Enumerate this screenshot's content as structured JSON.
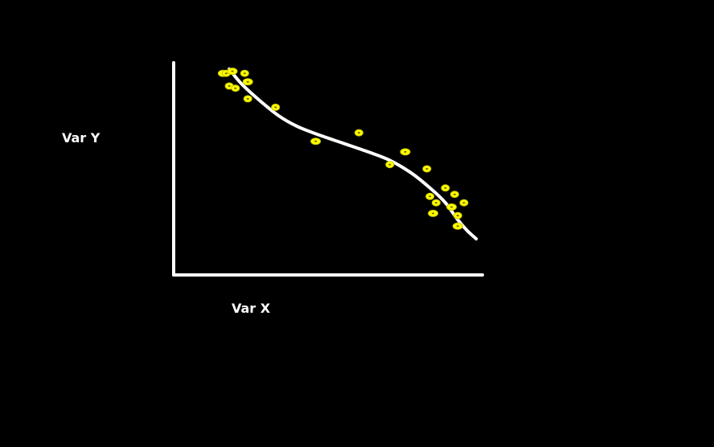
{
  "chart_data": {
    "type": "scatter",
    "title": "",
    "xlabel": "Var X",
    "ylabel": "Var Y",
    "xlim": [
      0,
      100
    ],
    "ylim": [
      0,
      100
    ],
    "grid": false,
    "legend": "none",
    "ticks": false,
    "points": [
      {
        "x": 16,
        "y": 95
      },
      {
        "x": 17,
        "y": 95
      },
      {
        "x": 18,
        "y": 89
      },
      {
        "x": 19,
        "y": 96
      },
      {
        "x": 20,
        "y": 88
      },
      {
        "x": 23,
        "y": 95
      },
      {
        "x": 24,
        "y": 91
      },
      {
        "x": 24,
        "y": 83
      },
      {
        "x": 33,
        "y": 79
      },
      {
        "x": 46,
        "y": 63
      },
      {
        "x": 60,
        "y": 67
      },
      {
        "x": 70,
        "y": 52
      },
      {
        "x": 75,
        "y": 58
      },
      {
        "x": 82,
        "y": 50
      },
      {
        "x": 83,
        "y": 37
      },
      {
        "x": 84,
        "y": 29
      },
      {
        "x": 85,
        "y": 34
      },
      {
        "x": 88,
        "y": 41
      },
      {
        "x": 90,
        "y": 32
      },
      {
        "x": 91,
        "y": 38
      },
      {
        "x": 92,
        "y": 28
      },
      {
        "x": 92,
        "y": 23
      },
      {
        "x": 94,
        "y": 34
      }
    ],
    "trend_curve": {
      "x": [
        18,
        22,
        28,
        34,
        40,
        47,
        55,
        63,
        70,
        77,
        83,
        88,
        92,
        95,
        98
      ],
      "y": [
        97,
        90,
        82,
        75,
        70,
        66,
        62,
        58,
        54,
        48,
        41,
        34,
        26,
        21,
        17
      ]
    },
    "colors": {
      "background": "#000000",
      "axes": "#ffffff",
      "points": "#ffff00",
      "points_outline": "#c8c800",
      "trend": "#ffffff",
      "text": "#ffffff"
    }
  }
}
